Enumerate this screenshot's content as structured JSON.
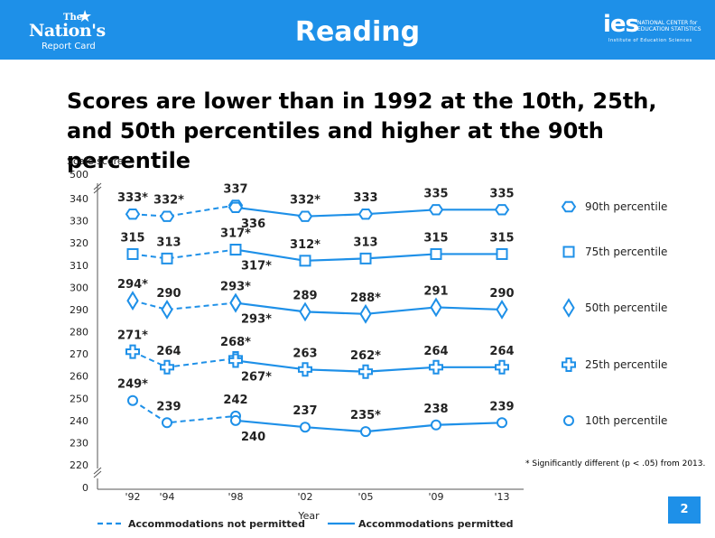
{
  "header": {
    "title": "Reading",
    "logo_left": {
      "the": "The",
      "nations": "Nation's",
      "report_card": "Report Card"
    },
    "logo_right": {
      "ies": "ies",
      "center": "NATIONAL CENTER for EDUCATION STATISTICS",
      "institute": "Institute of Education Sciences"
    },
    "color": "#1e90e8"
  },
  "headline": "Scores are lower than in 1992 at the 10th, 25th, and 50th percentiles and higher at the 90th percentile",
  "footnote": "* Significantly different (p < .05) from 2013.",
  "page_number": "2",
  "chart_data": {
    "type": "line",
    "ylabel": "Scale score",
    "xlabel": "Year",
    "x": [
      "'92",
      "'94",
      "'98",
      "'02",
      "'05",
      "'09",
      "'13"
    ],
    "yticks": [
      "0",
      "220",
      "230",
      "240",
      "250",
      "260",
      "270",
      "280",
      "290",
      "300",
      "310",
      "320",
      "330",
      "340",
      "500"
    ],
    "axis_breaks": true,
    "series_color": "#1e90e8",
    "series": [
      {
        "name": "90th percentile",
        "marker": "hexagon",
        "values": [
          333,
          332,
          337,
          332,
          333,
          335,
          335
        ],
        "labels": [
          "333*",
          "332*",
          "337",
          "332*",
          "333",
          "335",
          "335"
        ],
        "second_1998": {
          "value": 336,
          "label": "336"
        }
      },
      {
        "name": "75th percentile",
        "marker": "square",
        "values": [
          315,
          313,
          317,
          312,
          313,
          315,
          315
        ],
        "labels": [
          "315",
          "313",
          "317*",
          "312*",
          "313",
          "315",
          "315"
        ],
        "second_1998": {
          "value": 317,
          "label": "317*"
        }
      },
      {
        "name": "50th percentile",
        "marker": "diamond",
        "values": [
          294,
          290,
          293,
          289,
          288,
          291,
          290
        ],
        "labels": [
          "294*",
          "290",
          "293*",
          "289",
          "288*",
          "291",
          "290"
        ],
        "second_1998": {
          "value": 293,
          "label": "293*"
        }
      },
      {
        "name": "25th percentile",
        "marker": "cross",
        "values": [
          271,
          264,
          268,
          263,
          262,
          264,
          264
        ],
        "labels": [
          "271*",
          "264",
          "268*",
          "263",
          "262*",
          "264",
          "264"
        ],
        "second_1998": {
          "value": 267,
          "label": "267*"
        }
      },
      {
        "name": "10th percentile",
        "marker": "circle",
        "values": [
          249,
          239,
          242,
          237,
          235,
          238,
          239
        ],
        "labels": [
          "249*",
          "239",
          "242",
          "237",
          "235*",
          "238",
          "239"
        ],
        "second_1998": {
          "value": 240,
          "label": "240"
        }
      }
    ],
    "line_legend": [
      {
        "label": "Accommodations not permitted",
        "style": "dashed"
      },
      {
        "label": "Accommodations permitted",
        "style": "solid"
      }
    ]
  }
}
